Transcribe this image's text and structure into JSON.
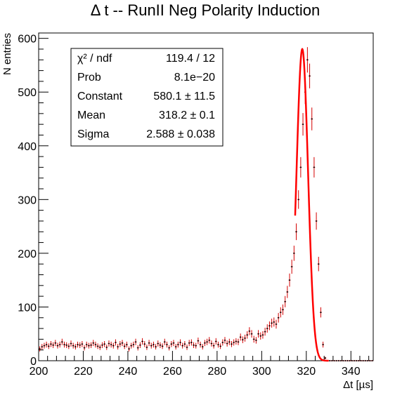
{
  "chart_data": {
    "type": "scatter",
    "title": "Δ t -- RunII Neg Polarity Induction",
    "xlabel": "Δt [µs]",
    "ylabel": "N entries",
    "xlim": [
      200,
      350
    ],
    "ylim": [
      0,
      610
    ],
    "grid": false,
    "x_ticks": [
      200,
      220,
      240,
      260,
      280,
      300,
      320,
      340
    ],
    "x_tick_labels": [
      "200",
      "220",
      "240",
      "260",
      "280",
      "300",
      "320",
      "340"
    ],
    "y_ticks": [
      0,
      100,
      200,
      300,
      400,
      500,
      600
    ],
    "y_tick_labels": [
      "0",
      "100",
      "200",
      "300",
      "400",
      "500",
      "600"
    ],
    "series": [
      {
        "type": "histogram-points",
        "color": "#d40000",
        "x": [
          200.5,
          201.5,
          202.5,
          203.5,
          204.5,
          205.5,
          206.5,
          207.5,
          208.5,
          209.5,
          210.5,
          211.5,
          212.5,
          213.5,
          214.5,
          215.5,
          216.5,
          217.5,
          218.5,
          219.5,
          220.5,
          221.5,
          222.5,
          223.5,
          224.5,
          225.5,
          226.5,
          227.5,
          228.5,
          229.5,
          230.5,
          231.5,
          232.5,
          233.5,
          234.5,
          235.5,
          236.5,
          237.5,
          238.5,
          239.5,
          240.5,
          241.5,
          242.5,
          243.5,
          244.5,
          245.5,
          246.5,
          247.5,
          248.5,
          249.5,
          250.5,
          251.5,
          252.5,
          253.5,
          254.5,
          255.5,
          256.5,
          257.5,
          258.5,
          259.5,
          260.5,
          261.5,
          262.5,
          263.5,
          264.5,
          265.5,
          266.5,
          267.5,
          268.5,
          269.5,
          270.5,
          271.5,
          272.5,
          273.5,
          274.5,
          275.5,
          276.5,
          277.5,
          278.5,
          279.5,
          280.5,
          281.5,
          282.5,
          283.5,
          284.5,
          285.5,
          286.5,
          287.5,
          288.5,
          289.5,
          290.5,
          291.5,
          292.5,
          293.5,
          294.5,
          295.5,
          296.5,
          297.5,
          298.5,
          299.5,
          300.5,
          301.5,
          302.5,
          303.5,
          304.5,
          305.5,
          306.5,
          307.5,
          308.5,
          309.5,
          310.5,
          311.5,
          312.5,
          313.5,
          314.5,
          315.5,
          316.5,
          317.5,
          318.5,
          319.5,
          320.5,
          321.5,
          322.5,
          323.5,
          324.5,
          325.5,
          326.5,
          327.5,
          328.5,
          329.5,
          330.5,
          331.5,
          332.5,
          333.5,
          334.5,
          335.5,
          336.5,
          337.5,
          338.5,
          339.5,
          340.5,
          341.5,
          342.5,
          343.5,
          344.5,
          345.5,
          346.5,
          347.5,
          348.5,
          349.5
        ],
        "y": [
          22,
          26,
          28,
          30,
          27,
          31,
          29,
          33,
          28,
          30,
          35,
          30,
          29,
          27,
          32,
          28,
          26,
          30,
          29,
          31,
          24,
          30,
          28,
          29,
          33,
          30,
          27,
          25,
          29,
          31,
          25,
          32,
          30,
          28,
          34,
          26,
          31,
          33,
          27,
          30,
          22,
          28,
          30,
          35,
          24,
          29,
          36,
          31,
          25,
          33,
          28,
          30,
          26,
          32,
          29,
          27,
          35,
          30,
          24,
          31,
          33,
          26,
          30,
          34,
          28,
          31,
          25,
          33,
          34,
          29,
          28,
          37,
          30,
          26,
          33,
          35,
          38,
          32,
          28,
          36,
          30,
          27,
          34,
          38,
          32,
          35,
          31,
          34,
          36,
          35,
          44,
          39,
          42,
          48,
          55,
          50,
          40,
          38,
          50,
          46,
          48,
          54,
          60,
          65,
          70,
          72,
          68,
          80,
          90,
          95,
          110,
          128,
          150,
          175,
          200,
          240,
          300,
          360,
          440,
          500,
          560,
          530,
          450,
          360,
          260,
          180,
          90,
          30,
          5,
          0,
          0,
          0,
          0,
          0,
          0,
          0,
          0,
          0,
          0,
          0,
          0,
          0,
          0,
          0,
          0,
          0,
          0,
          0,
          0,
          0
        ]
      },
      {
        "type": "gaussian-fit",
        "color": "#ff0000",
        "fit_range": [
          315,
          330
        ],
        "constant": 580.1,
        "mean": 318.2,
        "sigma": 2.588
      }
    ],
    "stats_box": [
      {
        "label": "χ² / ndf",
        "value": "119.4 / 12"
      },
      {
        "label": "Prob",
        "value": "8.1e−20"
      },
      {
        "label": "Constant",
        "value": "580.1 ± 11.5"
      },
      {
        "label": "Mean",
        "value": "318.2 ± 0.1"
      },
      {
        "label": "Sigma",
        "value": "2.588 ± 0.038"
      }
    ]
  }
}
